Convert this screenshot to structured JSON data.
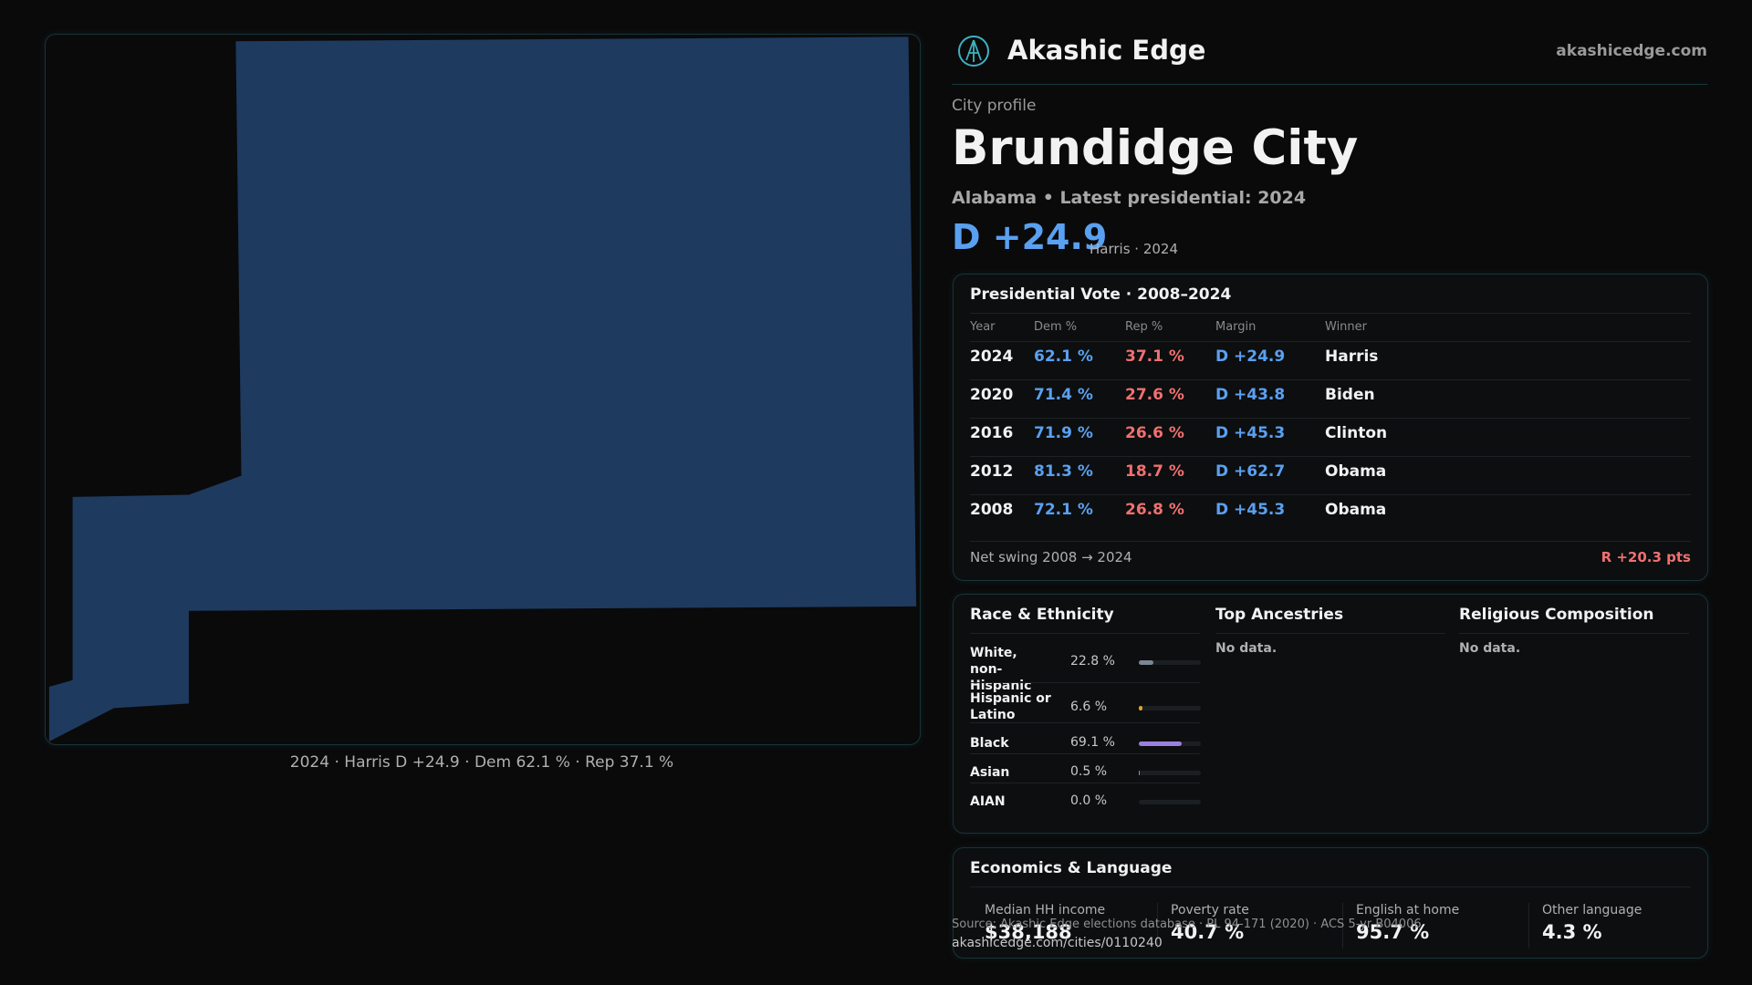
{
  "header": {
    "brand": "Akashic Edge",
    "site": "akashicedge.com"
  },
  "profile": {
    "kicker": "City profile",
    "name": "Brundidge City",
    "subtitle": "Alabama • Latest presidential: 2024",
    "margin": "D +24.9",
    "margin_note": "Harris · 2024"
  },
  "map": {
    "caption": "2024 · Harris D +24.9 · Dem 62.1 % · Rep 37.1 %"
  },
  "presidential": {
    "title": "Presidential Vote · 2008–2024",
    "columns": [
      "Year",
      "Dem %",
      "Rep %",
      "Margin",
      "Winner"
    ],
    "rows": [
      [
        "2024",
        "62.1 %",
        "37.1 %",
        "D +24.9",
        "Harris"
      ],
      [
        "2020",
        "71.4 %",
        "27.6 %",
        "D +43.8",
        "Biden"
      ],
      [
        "2016",
        "71.9 %",
        "26.6 %",
        "D +45.3",
        "Clinton"
      ],
      [
        "2012",
        "81.3 %",
        "18.7 %",
        "D +62.7",
        "Obama"
      ],
      [
        "2008",
        "72.1 %",
        "26.8 %",
        "D +45.3",
        "Obama"
      ]
    ],
    "swing_label": "Net swing 2008 → 2024",
    "swing_value": "R +20.3 pts"
  },
  "race": {
    "title": "Race & Ethnicity",
    "rows": [
      {
        "label": "White, non-Hispanic",
        "value": 22.8,
        "value_label": "22.8 %",
        "color": "#7b8796"
      },
      {
        "label": "Hispanic or Latino",
        "value": 6.6,
        "value_label": "6.6 %",
        "color": "#e0a030"
      },
      {
        "label": "Black",
        "value": 69.1,
        "value_label": "69.1 %",
        "color": "#9a7ee0"
      },
      {
        "label": "Asian",
        "value": 0.5,
        "value_label": "0.5 %",
        "color": "#4fb0a0"
      },
      {
        "label": "AIAN",
        "value": 0.0,
        "value_label": "0.0 %",
        "color": "#c07050"
      }
    ]
  },
  "ancestries": {
    "title": "Top Ancestries",
    "note": "No data."
  },
  "religion": {
    "title": "Religious Composition",
    "note": "No data."
  },
  "economics": {
    "title": "Economics & Language",
    "stats": [
      {
        "label": "Median HH income",
        "value": "$38,188"
      },
      {
        "label": "Poverty rate",
        "value": "40.7 %"
      },
      {
        "label": "English at home",
        "value": "95.7 %"
      },
      {
        "label": "Other language",
        "value": "4.3 %"
      }
    ]
  },
  "footer": {
    "source": "Source: Akashic Edge elections database · PL 94-171 (2020) · ACS 5-yr B04006",
    "url": "akashicedge.com/cities/0110240"
  }
}
